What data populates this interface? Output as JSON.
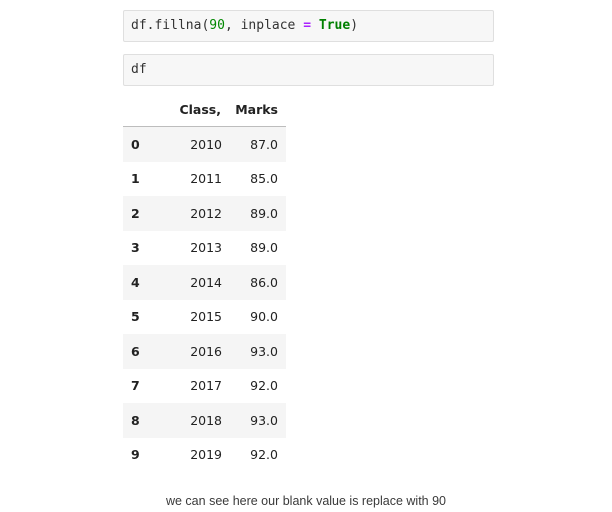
{
  "cells": {
    "cell1": {
      "obj": "df",
      "dot": ".",
      "method": "fillna",
      "open_paren": "(",
      "arg_value": "90",
      "comma": ", ",
      "kwarg": "inplace",
      "eq": " = ",
      "kw_value": "True",
      "close_paren": ")"
    },
    "cell2": {
      "code": "df"
    }
  },
  "table": {
    "headers": {
      "index": "",
      "class": "Class,",
      "marks": "Marks"
    },
    "rows": [
      {
        "index": "0",
        "class": "2010",
        "marks": "87.0"
      },
      {
        "index": "1",
        "class": "2011",
        "marks": "85.0"
      },
      {
        "index": "2",
        "class": "2012",
        "marks": "89.0"
      },
      {
        "index": "3",
        "class": "2013",
        "marks": "89.0"
      },
      {
        "index": "4",
        "class": "2014",
        "marks": "86.0"
      },
      {
        "index": "5",
        "class": "2015",
        "marks": "90.0"
      },
      {
        "index": "6",
        "class": "2016",
        "marks": "93.0"
      },
      {
        "index": "7",
        "class": "2017",
        "marks": "92.0"
      },
      {
        "index": "8",
        "class": "2018",
        "marks": "93.0"
      },
      {
        "index": "9",
        "class": "2019",
        "marks": "92.0"
      }
    ]
  },
  "caption": "we can see here our blank value is replace with 90",
  "colors": {
    "code_background": "#f7f7f7",
    "number": "#008800",
    "operator": "#aa22ff",
    "keyword": "#008000",
    "row_stripe": "#f5f5f5"
  }
}
